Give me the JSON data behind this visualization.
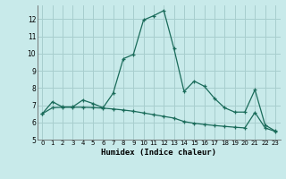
{
  "xlabel": "Humidex (Indice chaleur)",
  "bg_color": "#c8eaea",
  "grid_color": "#a8cece",
  "line_color": "#1a6b5a",
  "x_values": [
    0,
    1,
    2,
    3,
    4,
    5,
    6,
    7,
    8,
    9,
    10,
    11,
    12,
    13,
    14,
    15,
    16,
    17,
    18,
    19,
    20,
    21,
    22,
    23
  ],
  "line1_y": [
    6.5,
    7.2,
    6.9,
    6.9,
    7.3,
    7.1,
    6.85,
    7.7,
    9.7,
    9.95,
    11.95,
    12.2,
    12.5,
    10.3,
    7.8,
    8.4,
    8.1,
    7.4,
    6.85,
    6.6,
    6.6,
    7.9,
    5.85,
    5.5
  ],
  "line2_y": [
    6.5,
    6.85,
    6.88,
    6.88,
    6.88,
    6.86,
    6.83,
    6.78,
    6.72,
    6.65,
    6.55,
    6.45,
    6.35,
    6.25,
    6.05,
    5.95,
    5.88,
    5.82,
    5.77,
    5.72,
    5.68,
    6.58,
    5.68,
    5.48
  ],
  "xlim": [
    -0.5,
    23.5
  ],
  "ylim": [
    5,
    12.8
  ],
  "yticks": [
    5,
    6,
    7,
    8,
    9,
    10,
    11,
    12
  ],
  "xticks": [
    0,
    1,
    2,
    3,
    4,
    5,
    6,
    7,
    8,
    9,
    10,
    11,
    12,
    13,
    14,
    15,
    16,
    17,
    18,
    19,
    20,
    21,
    22,
    23
  ]
}
